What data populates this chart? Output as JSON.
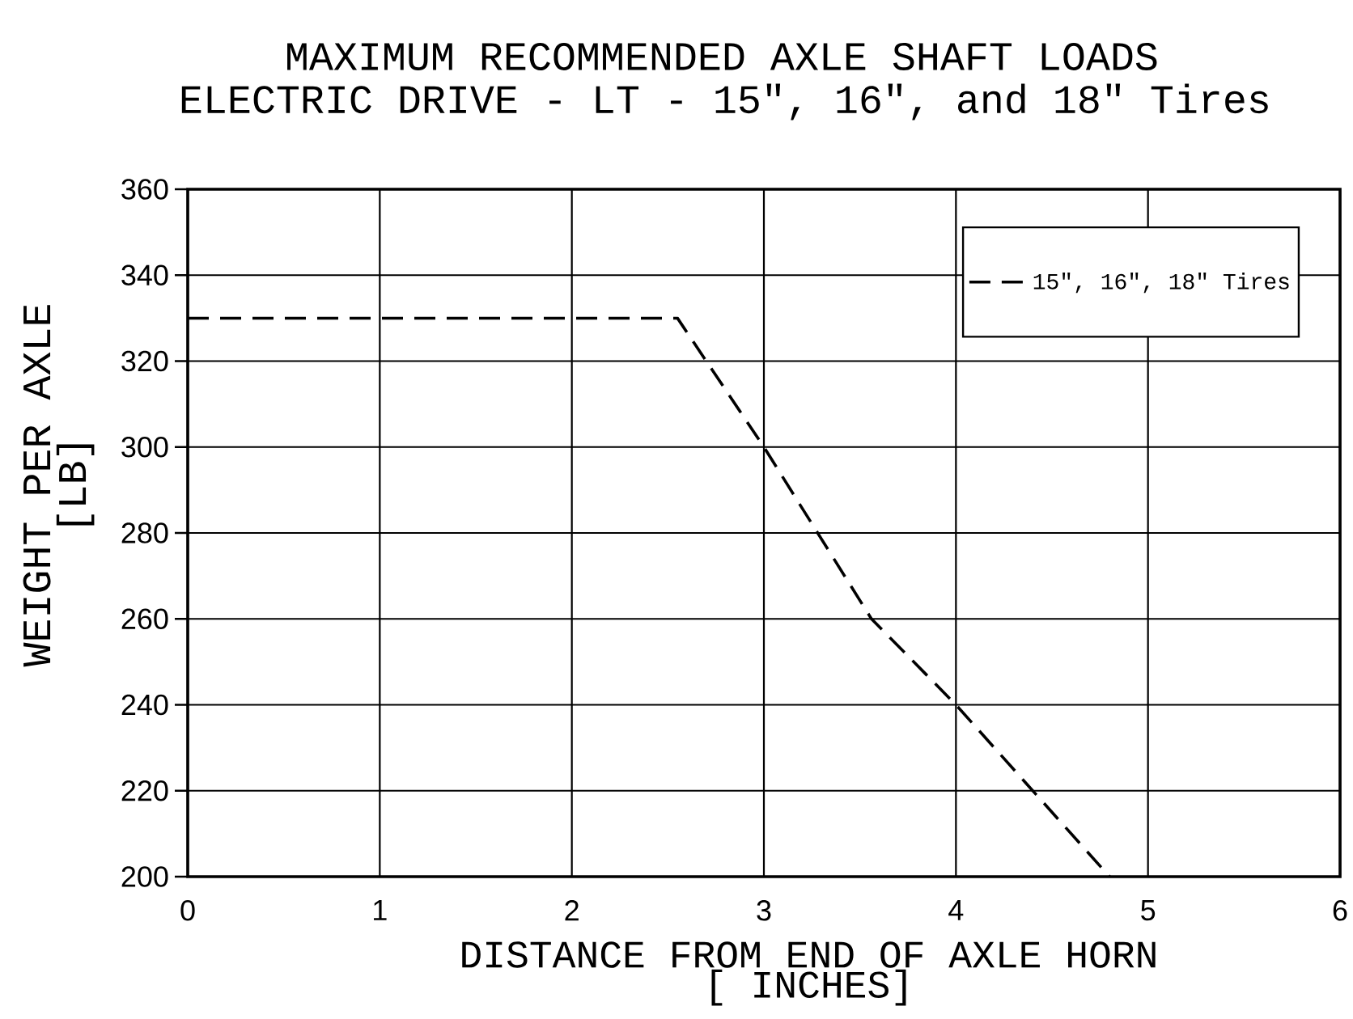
{
  "chart_data": {
    "type": "line",
    "title": "MAXIMUM RECOMMENDED AXLE SHAFT LOADS",
    "subtitle": "ELECTRIC DRIVE - LT - 15″, 16″, and 18″ Tires",
    "xlabel": "DISTANCE FROM END OF AXLE HORN [ INCHES]",
    "ylabel": "WEIGHT PER AXLE [LB]",
    "x": [
      0,
      2.55,
      3,
      3.56,
      4,
      4.8
    ],
    "series": [
      {
        "name": "15″, 16″, 18″ Tires",
        "color": "#000000",
        "values": [
          330,
          330,
          300,
          260,
          240,
          200
        ]
      }
    ],
    "xlim": [
      0,
      6
    ],
    "ylim": [
      200,
      360
    ],
    "xticks": [
      0,
      1,
      2,
      3,
      4,
      5,
      6
    ],
    "yticks": [
      200,
      220,
      240,
      260,
      280,
      300,
      320,
      340,
      360
    ],
    "grid": true,
    "legend": "top right",
    "line_style": "dashed",
    "marker": "none"
  }
}
